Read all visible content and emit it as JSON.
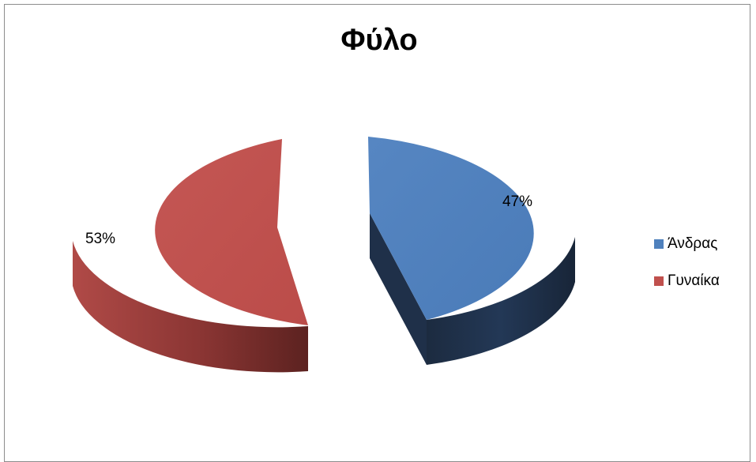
{
  "chart_data": {
    "type": "pie",
    "title": "Φύλο",
    "categories": [
      "Άνδρας",
      "Γυναίκα"
    ],
    "values": [
      47,
      53
    ],
    "data_labels": [
      "47%",
      "53%"
    ],
    "colors": [
      "#4f81bd",
      "#c0504d"
    ],
    "legend_position": "right",
    "style": "3d-exploded"
  }
}
